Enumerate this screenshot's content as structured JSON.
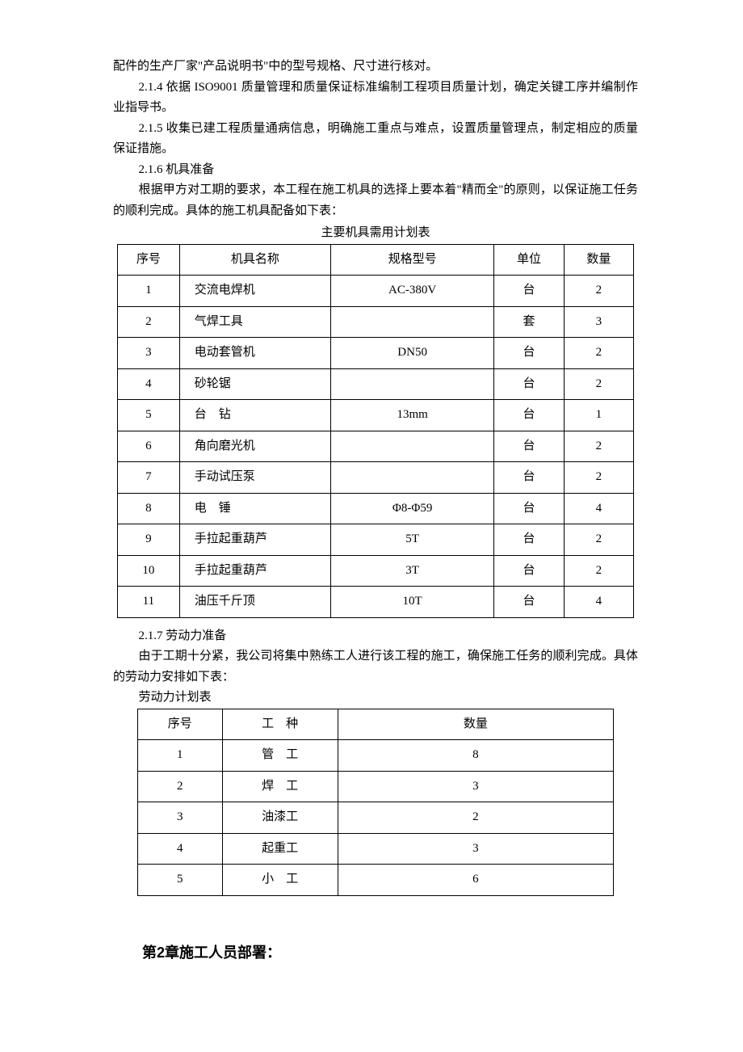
{
  "paragraphs": {
    "p0": "配件的生产厂家\"产品说明书\"中的型号规格、尺寸进行核对。",
    "p1": "2.1.4 依据 ISO9001 质量管理和质量保证标准编制工程项目质量计划，确定关键工序并编制作业指导书。",
    "p2": "2.1.5 收集已建工程质量通病信息，明确施工重点与难点，设置质量管理点，制定相应的质量保证措施。",
    "p3": "2.1.6 机具准备",
    "p4": "根据甲方对工期的要求，本工程在施工机具的选择上要本着\"精而全\"的原则，以保证施工任务的顺利完成。具体的施工机具配备如下表：",
    "table1_caption": "主要机具需用计划表",
    "p5": "2.1.7 劳动力准备",
    "p6": "由于工期十分紧，我公司将集中熟练工人进行该工程的施工，确保施工任务的顺利完成。具体的劳动力安排如下表：",
    "table2_caption": "劳动力计划表",
    "chapter2": "第2章施工人员部署："
  },
  "table1": {
    "headers": [
      "序号",
      "机具名称",
      "规格型号",
      "单位",
      "数量"
    ],
    "rows": [
      [
        "1",
        "交流电焊机",
        "AC-380V",
        "台",
        "2"
      ],
      [
        "2",
        "气焊工具",
        "",
        "套",
        "3"
      ],
      [
        "3",
        "电动套管机",
        "DN50",
        "台",
        "2"
      ],
      [
        "4",
        "砂轮锯",
        "",
        "台",
        "2"
      ],
      [
        "5",
        "台　钻",
        "13mm",
        "台",
        "1"
      ],
      [
        "6",
        "角向磨光机",
        "",
        "台",
        "2"
      ],
      [
        "7",
        "手动试压泵",
        "",
        "台",
        "2"
      ],
      [
        "8",
        "电　锤",
        "Φ8-Φ59",
        "台",
        "4"
      ],
      [
        "9",
        "手拉起重葫芦",
        "5T",
        "台",
        "2"
      ],
      [
        "10",
        "手拉起重葫芦",
        "3T",
        "台",
        "2"
      ],
      [
        "11",
        "油压千斤顶",
        "10T",
        "台",
        "4"
      ]
    ]
  },
  "table2": {
    "headers": [
      "序号",
      "工　种",
      "数量"
    ],
    "rows": [
      [
        "1",
        "管　工",
        "8"
      ],
      [
        "2",
        "焊　工",
        "3"
      ],
      [
        "3",
        "油漆工",
        "2"
      ],
      [
        "4",
        "起重工",
        "3"
      ],
      [
        "5",
        "小　工",
        "6"
      ]
    ]
  }
}
